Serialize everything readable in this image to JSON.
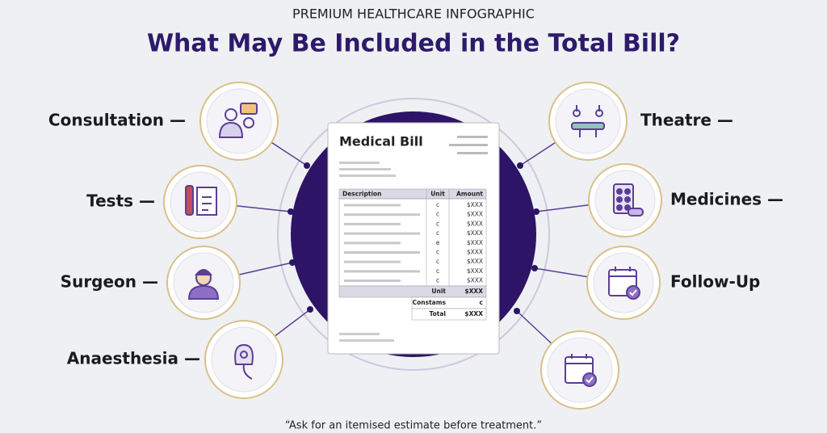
{
  "header": {
    "kicker": "PREMIUM HEALTHCARE INFOGRAPHIC",
    "title": "What May Be Included in the Total Bill?"
  },
  "items": [
    {
      "label": "Consultation —"
    },
    {
      "label": "Tests —"
    },
    {
      "label": "Surgeon —"
    },
    {
      "label": "Anaesthesia —"
    },
    {
      "label": "Theatre —"
    },
    {
      "label": "Medicines —"
    },
    {
      "label": "Follow-Up"
    },
    {
      "label": null
    }
  ],
  "bill": {
    "title": "Medical Bill",
    "columns": [
      "Description",
      "Unit",
      "Amount"
    ],
    "rows": [
      [
        "c",
        "$XXX"
      ],
      [
        "c",
        "$XXX"
      ],
      [
        "c",
        "$XXX"
      ],
      [
        "c",
        "$XXX"
      ],
      [
        "e",
        "$XXX"
      ],
      [
        "c",
        "$XXX"
      ],
      [
        "c",
        "$XXX"
      ],
      [
        "c",
        "$XXX"
      ],
      [
        "c",
        "$XXX"
      ]
    ],
    "summary": [
      [
        "Unit",
        "$XXX"
      ],
      [
        "Constams",
        "c"
      ],
      [
        "Total",
        "$XXX"
      ]
    ]
  },
  "footer": {
    "quote": "“Ask for an itemised estimate before treatment.”"
  }
}
